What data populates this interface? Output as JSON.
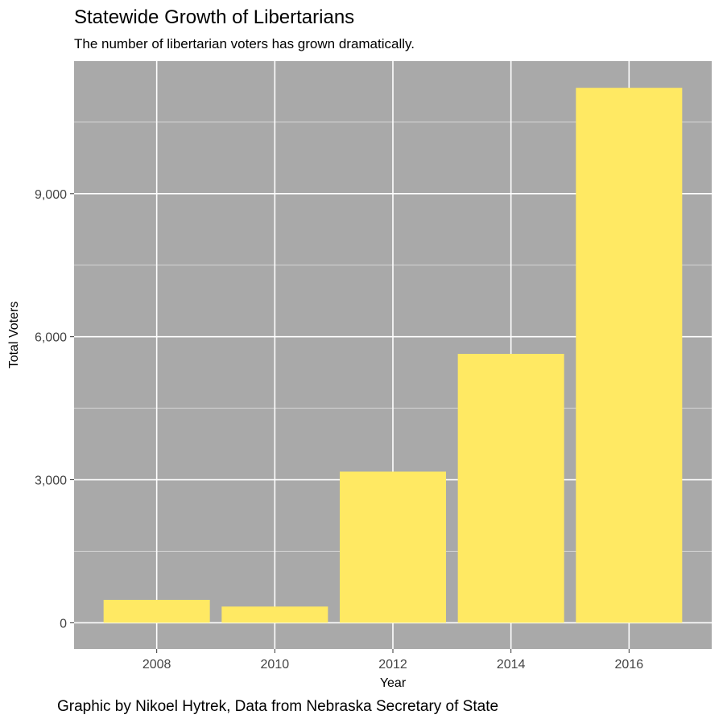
{
  "header": {
    "title": "Statewide Growth of Libertarians",
    "subtitle": "The number of libertarian voters has grown dramatically."
  },
  "footer": {
    "caption": "Graphic by Nikoel Hytrek, Data from Nebraska Secretary of State"
  },
  "colors": {
    "panel_background": "#a9a9a9",
    "grid": "#ffffff",
    "bar_fill": "#ffe963"
  },
  "chart_data": {
    "type": "bar",
    "title": "Statewide Growth of Libertarians",
    "subtitle": "The number of libertarian voters has grown dramatically.",
    "xlabel": "Year",
    "ylabel": "Total Voters",
    "categories": [
      "2008",
      "2010",
      "2012",
      "2014",
      "2016"
    ],
    "values": [
      480,
      340,
      3170,
      5640,
      11220
    ],
    "ylim": [
      -550,
      11780
    ],
    "yticks": [
      0,
      3000,
      6000,
      9000
    ],
    "ytick_labels": [
      "0",
      "3,000",
      "6,000",
      "9,000"
    ],
    "grid": true,
    "legend": "none"
  }
}
